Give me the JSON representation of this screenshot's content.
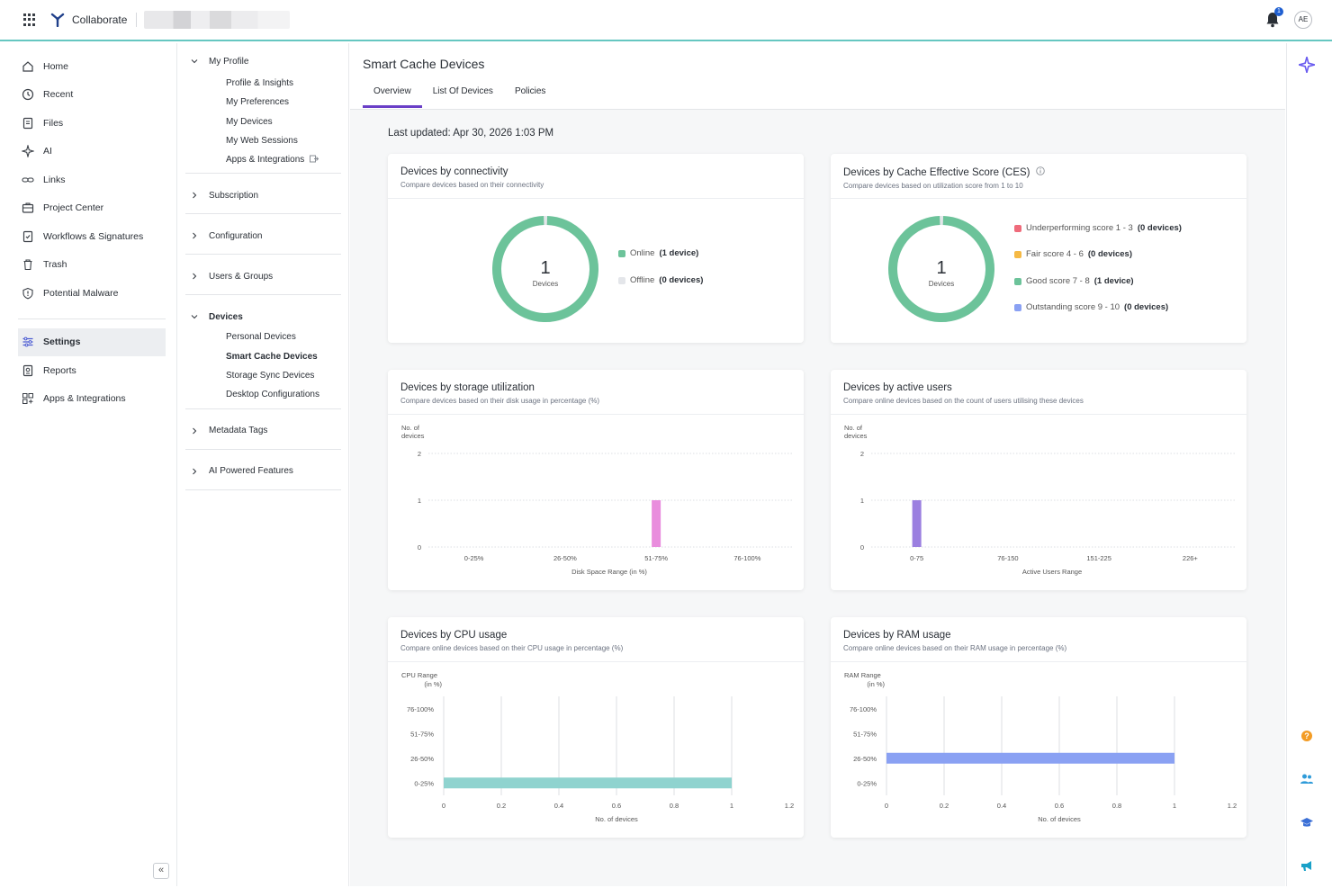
{
  "header": {
    "app_name": "Collaborate",
    "notification_count": "1",
    "user_initials": "AE"
  },
  "leftnav": {
    "items": [
      {
        "label": "Home",
        "icon": "home-icon"
      },
      {
        "label": "Recent",
        "icon": "clock-icon"
      },
      {
        "label": "Files",
        "icon": "file-icon"
      },
      {
        "label": "AI",
        "icon": "ai-icon"
      },
      {
        "label": "Links",
        "icon": "link-icon"
      },
      {
        "label": "Project Center",
        "icon": "briefcase-icon"
      },
      {
        "label": "Workflows & Signatures",
        "icon": "workflow-icon"
      },
      {
        "label": "Trash",
        "icon": "trash-icon"
      },
      {
        "label": "Potential Malware",
        "icon": "shield-icon"
      }
    ],
    "bottom_items": [
      {
        "label": "Settings",
        "icon": "settings-icon"
      },
      {
        "label": "Reports",
        "icon": "reports-icon"
      },
      {
        "label": "Apps & Integrations",
        "icon": "apps-icon"
      }
    ]
  },
  "subnav": {
    "my_profile": {
      "label": "My Profile",
      "items": [
        "Profile & Insights",
        "My Preferences",
        "My Devices",
        "My Web Sessions",
        "Apps & Integrations"
      ]
    },
    "subscription": "Subscription",
    "configuration": "Configuration",
    "users_groups": "Users & Groups",
    "devices": {
      "label": "Devices",
      "items": [
        "Personal Devices",
        "Smart Cache Devices",
        "Storage Sync Devices",
        "Desktop Configurations"
      ]
    },
    "metadata_tags": "Metadata Tags",
    "ai_features": "AI Powered Features"
  },
  "main": {
    "title": "Smart Cache Devices",
    "tabs": [
      "Overview",
      "List Of Devices",
      "Policies"
    ],
    "last_updated": "Last updated: Apr 30, 2026 1:03 PM"
  },
  "cards": {
    "connectivity": {
      "title": "Devices by connectivity",
      "subtitle": "Compare devices based on their connectivity",
      "center_value": "1",
      "center_label": "Devices",
      "legend": [
        {
          "label": "Online",
          "count": "(1 device)",
          "color": "#6cc39a"
        },
        {
          "label": "Offline",
          "count": "(0 devices)",
          "color": "#e4e6ea"
        }
      ]
    },
    "ces": {
      "title": "Devices by Cache Effective Score (CES)",
      "subtitle": "Compare devices based on utilization score from 1 to 10",
      "center_value": "1",
      "center_label": "Devices",
      "legend": [
        {
          "label": "Underperforming score 1 - 3",
          "count": "(0 devices)",
          "color": "#ef6b7b"
        },
        {
          "label": "Fair score 4 - 6",
          "count": "(0 devices)",
          "color": "#f5b945"
        },
        {
          "label": "Good score 7 - 8",
          "count": "(1 device)",
          "color": "#6cc39a"
        },
        {
          "label": "Outstanding score 9 - 10",
          "count": "(0 devices)",
          "color": "#8aa1f3"
        }
      ]
    },
    "storage": {
      "title": "Devices by storage utilization",
      "subtitle": "Compare devices based on their disk usage in percentage (%)",
      "ylabel_1": "No. of",
      "ylabel_2": "devices",
      "xlabel": "Disk Space Range (in %)"
    },
    "active_users": {
      "title": "Devices by active users",
      "subtitle": "Compare online devices based on the count of users utilising these devices",
      "ylabel_1": "No. of",
      "ylabel_2": "devices",
      "xlabel": "Active Users Range"
    },
    "cpu": {
      "title": "Devices by CPU usage",
      "subtitle": "Compare online devices based on their CPU usage in percentage (%)",
      "ylabel_1": "CPU Range",
      "ylabel_2": "(in %)",
      "xlabel": "No. of devices"
    },
    "ram": {
      "title": "Devices by RAM usage",
      "subtitle": "Compare online devices based on their RAM usage in percentage (%)",
      "ylabel_1": "RAM Range",
      "ylabel_2": "(in %)",
      "xlabel": "No. of devices"
    }
  },
  "chart_data": [
    {
      "type": "pie",
      "title": "Devices by connectivity",
      "categories": [
        "Online",
        "Offline"
      ],
      "values": [
        1,
        0
      ],
      "colors": [
        "#6cc39a",
        "#e4e6ea"
      ]
    },
    {
      "type": "pie",
      "title": "Devices by Cache Effective Score (CES)",
      "categories": [
        "Underperforming score 1 - 3",
        "Fair score 4 - 6",
        "Good score 7 - 8",
        "Outstanding score 9 - 10"
      ],
      "values": [
        0,
        0,
        1,
        0
      ]
    },
    {
      "type": "bar",
      "title": "Devices by storage utilization",
      "categories": [
        "0-25%",
        "26-50%",
        "51-75%",
        "76-100%"
      ],
      "values": [
        0,
        0,
        1,
        0
      ],
      "ylim": [
        0,
        2
      ],
      "yticks": [
        0,
        1,
        2
      ],
      "color": "#e98ddd",
      "xlabel": "Disk Space Range (in %)"
    },
    {
      "type": "bar",
      "title": "Devices by active users",
      "categories": [
        "0-75",
        "76-150",
        "151-225",
        "226+"
      ],
      "values": [
        1,
        0,
        0,
        0
      ],
      "ylim": [
        0,
        2
      ],
      "yticks": [
        0,
        1,
        2
      ],
      "color": "#9b7fe0",
      "xlabel": "Active Users Range"
    },
    {
      "type": "bar",
      "orientation": "horizontal",
      "title": "Devices by CPU usage",
      "categories": [
        "0-25%",
        "26-50%",
        "51-75%",
        "76-100%"
      ],
      "values": [
        1,
        0,
        0,
        0
      ],
      "xlim": [
        0,
        1.2
      ],
      "xticks": [
        "0",
        "0.2",
        "0.4",
        "0.6",
        "0.8",
        "1",
        "1.2"
      ],
      "color": "#8fd3cf",
      "xlabel": "No. of devices"
    },
    {
      "type": "bar",
      "orientation": "horizontal",
      "title": "Devices by RAM usage",
      "categories": [
        "0-25%",
        "26-50%",
        "51-75%",
        "76-100%"
      ],
      "values": [
        0,
        1,
        0,
        0
      ],
      "xlim": [
        0,
        1.2
      ],
      "xticks": [
        "0",
        "0.2",
        "0.4",
        "0.6",
        "0.8",
        "1",
        "1.2"
      ],
      "color": "#8aa1f3",
      "xlabel": "No. of devices"
    }
  ]
}
